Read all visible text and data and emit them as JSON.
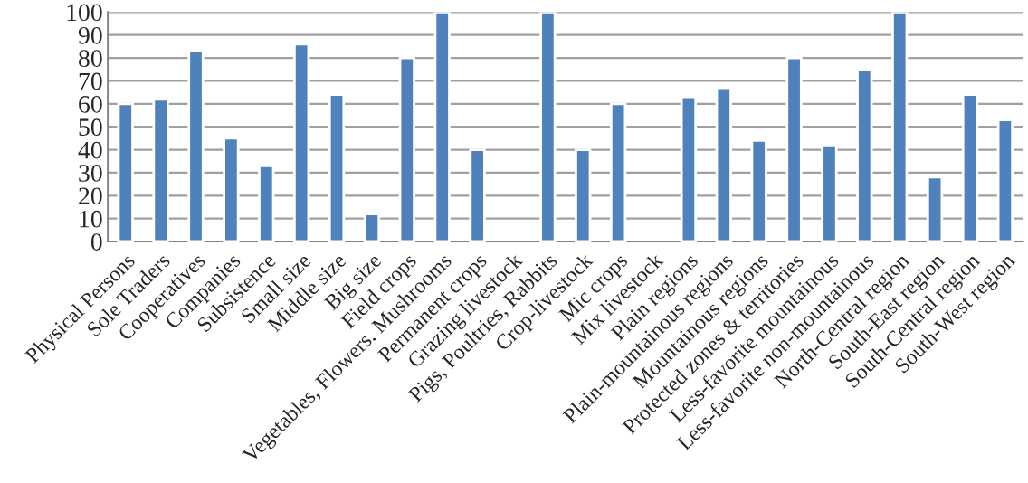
{
  "chart_data": {
    "type": "bar",
    "categories": [
      "Physical Persons",
      "Sole Traders",
      "Cooperatives",
      "Companies",
      "Subsistence",
      "Small size",
      "Middle size",
      "Big size",
      "Field crops",
      "Vegetables, Flowers, Mushrooms",
      "Permanent crops",
      "Grazing livestock",
      "Pigs, Poultries, Rabbits",
      "Crop-livestock",
      "Mic crops",
      "Mix livestock",
      "Plain regions",
      "Plain-mountainous regions",
      "Mountainous regions",
      "Protected zones & territories",
      "Less-favorite mountainous",
      "Less-favorite non-mountainous",
      "North-Central region",
      "South-East region",
      "South-Central region",
      "South-West region"
    ],
    "values": [
      60,
      62,
      83,
      45,
      33,
      86,
      64,
      12,
      80,
      100,
      40,
      null,
      100,
      40,
      60,
      null,
      63,
      67,
      44,
      80,
      42,
      75,
      100,
      28,
      64,
      53
    ],
    "color": "#4f81bd",
    "ylim": [
      0,
      100
    ],
    "yticks": [
      0,
      10,
      20,
      30,
      40,
      50,
      60,
      70,
      80,
      90,
      100
    ],
    "grid": "y"
  }
}
